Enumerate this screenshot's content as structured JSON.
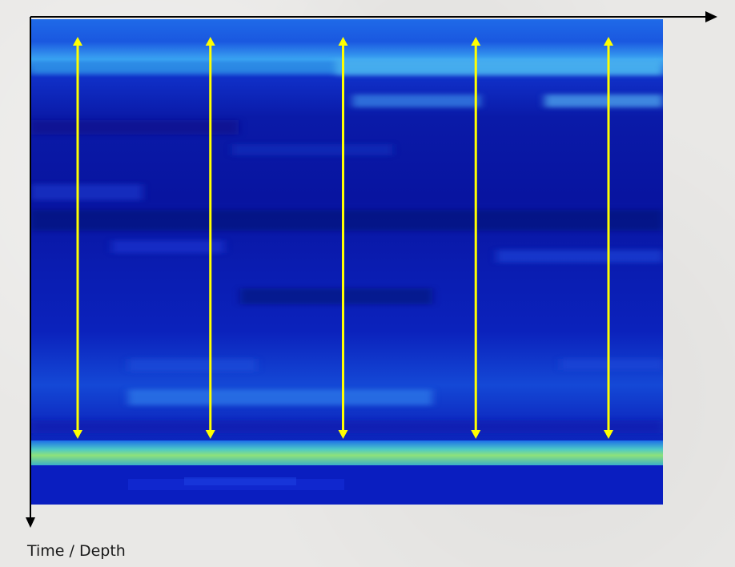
{
  "figure": {
    "vertical_axis_label": "Time / Depth",
    "arrow_color": "#ffff00",
    "axis_color": "#000000",
    "background_color": "#e9e8e6",
    "heatmap_base_color": "#0a1ec8",
    "bright_band_color": "#7fe07a",
    "double_arrow_count": 5
  }
}
